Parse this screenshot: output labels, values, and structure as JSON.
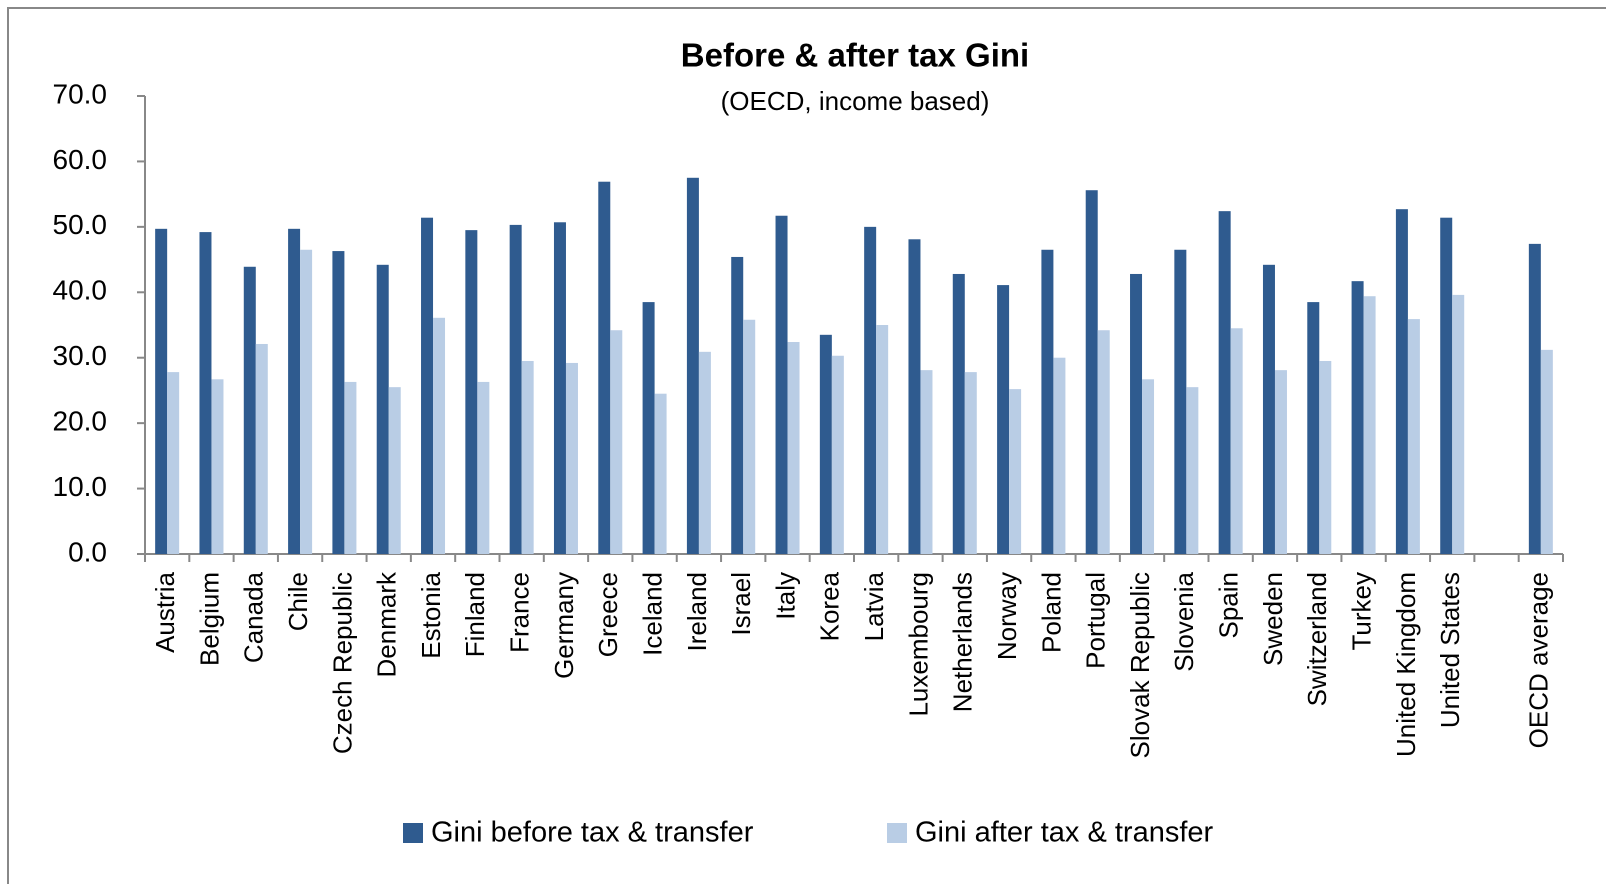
{
  "chart_data": {
    "type": "bar",
    "title": "Before & after tax Gini",
    "subtitle": "(OECD, income based)",
    "categories": [
      "Austria",
      "Belgium",
      "Canada",
      "Chile",
      "Czech Republic",
      "Denmark",
      "Estonia",
      "Finland",
      "France",
      "Germany",
      "Greece",
      "Iceland",
      "Ireland",
      "Israel",
      "Italy",
      "Korea",
      "Latvia",
      "Luxembourg",
      "Netherlands",
      "Norway",
      "Poland",
      "Portugal",
      "Slovak Republic",
      "Slovenia",
      "Spain",
      "Sweden",
      "Switzerland",
      "Turkey",
      "United Kingdom",
      "United States",
      null,
      "OECD average"
    ],
    "series": [
      {
        "name": "Gini before tax & transfer",
        "color": "#2f5b8f",
        "values": [
          49.7,
          49.2,
          43.9,
          49.7,
          46.3,
          44.2,
          51.4,
          49.5,
          50.3,
          50.7,
          56.9,
          38.5,
          57.5,
          45.4,
          51.7,
          33.5,
          50.0,
          48.1,
          42.8,
          41.1,
          46.5,
          55.6,
          42.8,
          46.5,
          52.4,
          44.2,
          38.5,
          41.7,
          52.7,
          51.4,
          null,
          47.4
        ]
      },
      {
        "name": "Gini after tax & transfer",
        "color": "#b9cde5",
        "values": [
          27.8,
          26.7,
          32.1,
          46.5,
          26.3,
          25.5,
          36.1,
          26.3,
          29.5,
          29.2,
          34.2,
          24.5,
          30.9,
          35.8,
          32.4,
          30.3,
          35.0,
          28.1,
          27.8,
          25.2,
          30.0,
          34.2,
          26.7,
          25.5,
          34.5,
          28.1,
          29.5,
          39.4,
          35.9,
          39.6,
          null,
          31.2
        ]
      }
    ],
    "ylim": [
      0,
      70
    ],
    "yticks": [
      {
        "value": 0,
        "label": "0.0"
      },
      {
        "value": 10,
        "label": "10.0"
      },
      {
        "value": 20,
        "label": "20.0"
      },
      {
        "value": 30,
        "label": "30.0"
      },
      {
        "value": 40,
        "label": "40.0"
      },
      {
        "value": 50,
        "label": "50.0"
      },
      {
        "value": 60,
        "label": "60.0"
      },
      {
        "value": 70,
        "label": "70.0"
      }
    ],
    "grid": false,
    "legend": "bottom"
  }
}
